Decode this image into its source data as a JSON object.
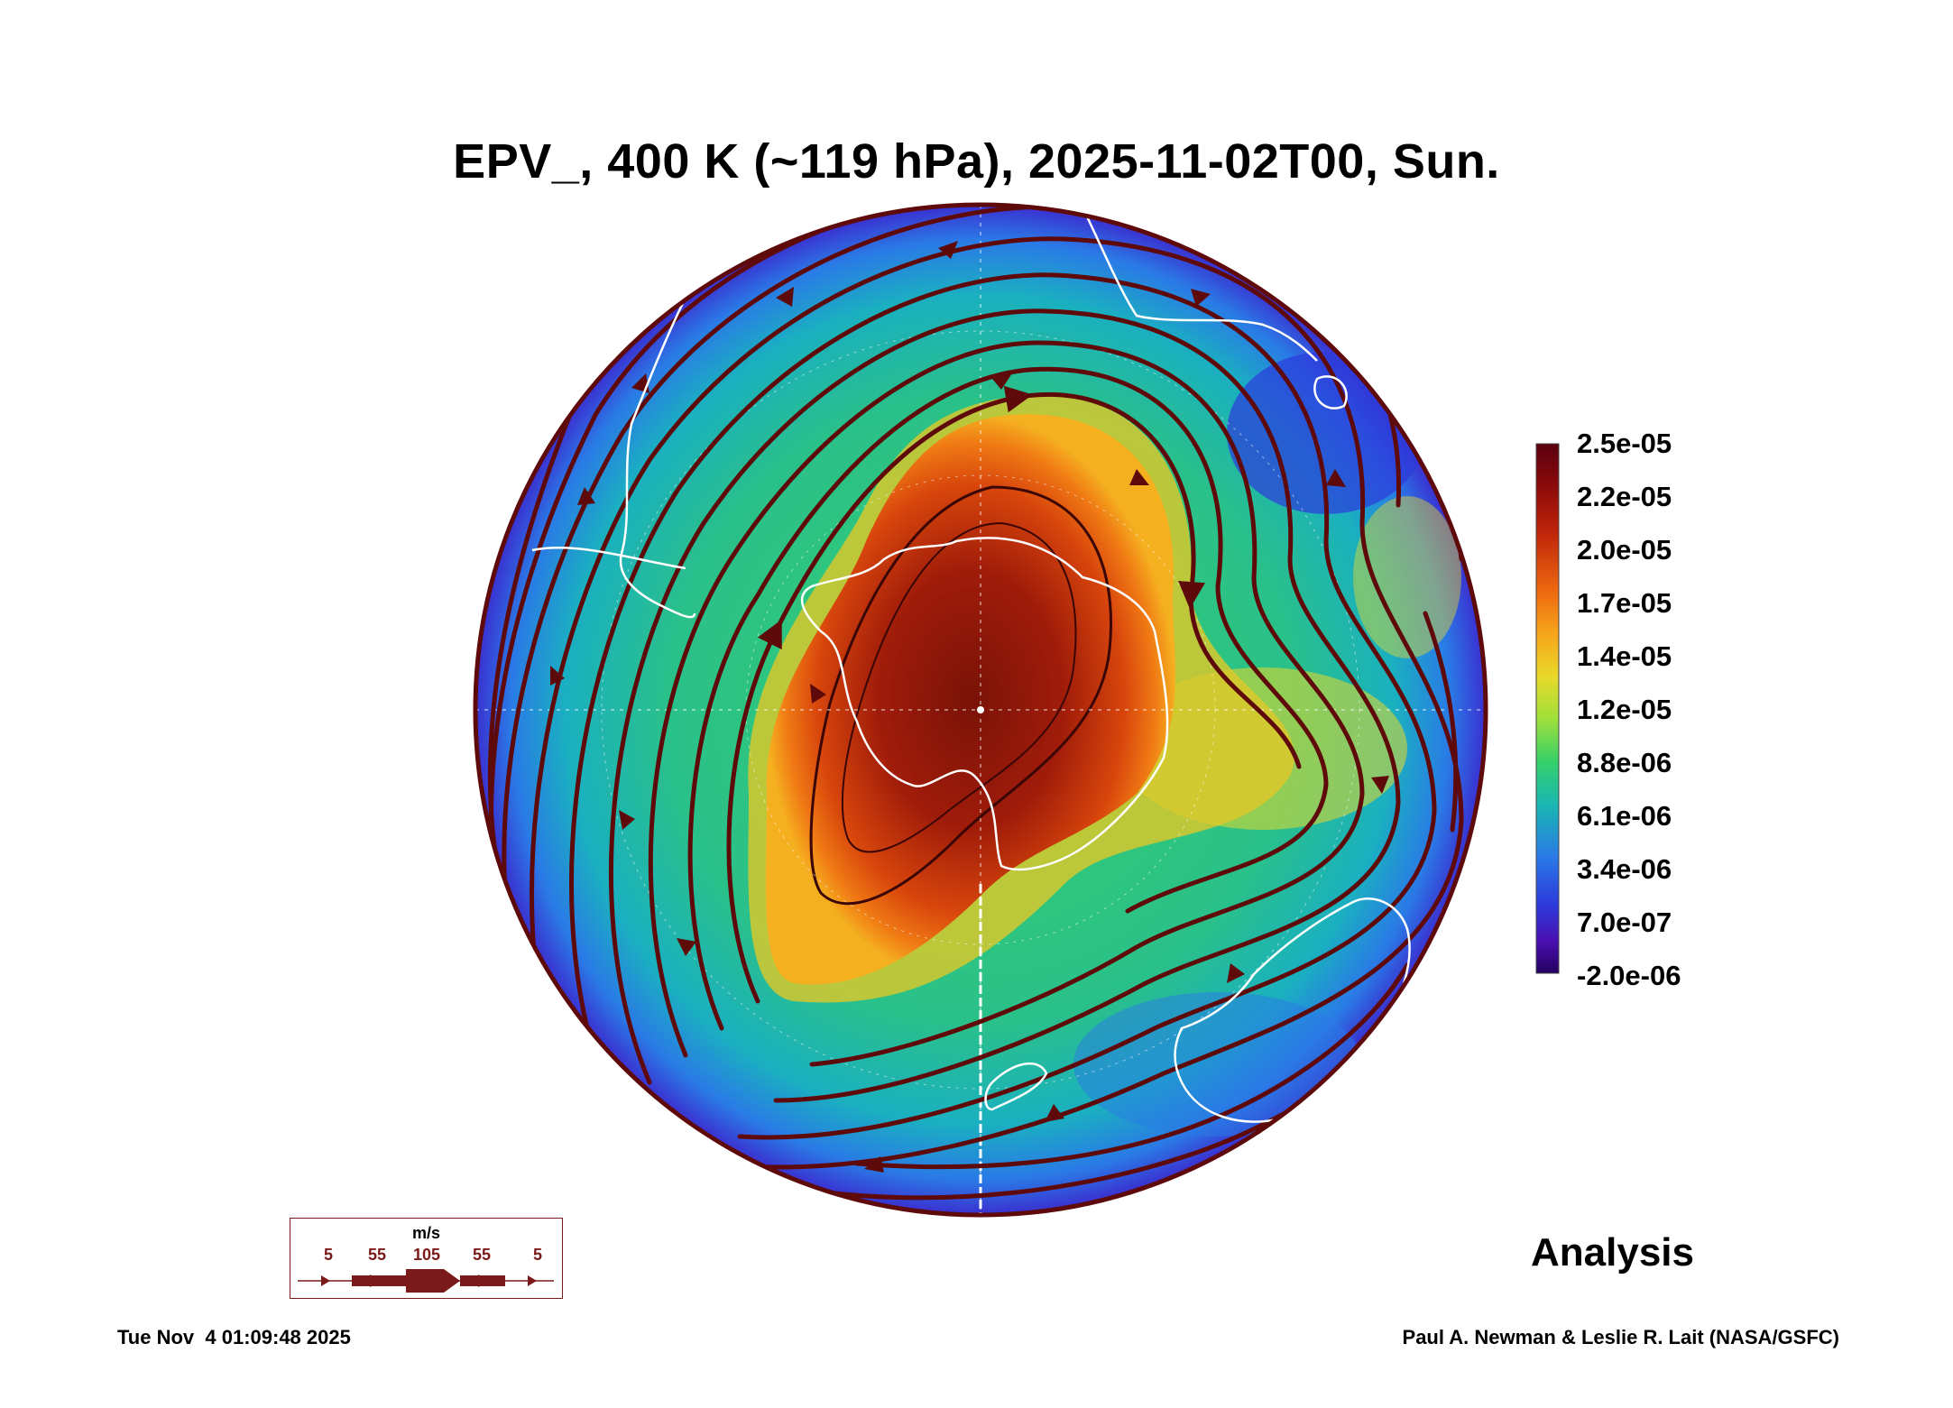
{
  "title": "EPV_, 400 K (~119 hPa), 2025-11-02T00, Sun.",
  "colorbar": {
    "ticks": [
      "2.5e-05",
      "2.2e-05",
      "2.0e-05",
      "1.7e-05",
      "1.4e-05",
      "1.2e-05",
      "8.8e-06",
      "6.1e-06",
      "3.4e-06",
      "7.0e-07",
      "-2.0e-06"
    ],
    "colors": [
      "#5a0010",
      "#8b0a0a",
      "#c0260a",
      "#ee6a10",
      "#f6a61a",
      "#e8d92a",
      "#9ee03a",
      "#36d06a",
      "#1ab8b0",
      "#2a7ae6",
      "#2c3adc",
      "#4a10b0",
      "#240060"
    ]
  },
  "wind_legend": {
    "unit": "m/s",
    "labels": [
      "5",
      "55",
      "105",
      "55",
      "5"
    ]
  },
  "label_analysis": "Analysis",
  "footer": {
    "timestamp": "Tue Nov  4 01:09:48 2025",
    "credit": "Paul A. Newman & Leslie R. Lait (NASA/GSFC)"
  },
  "colors": {
    "streamline": "#5e0a0a",
    "coastline": "#ffffff"
  },
  "icons": [
    "streamline-arrow-icon"
  ]
}
